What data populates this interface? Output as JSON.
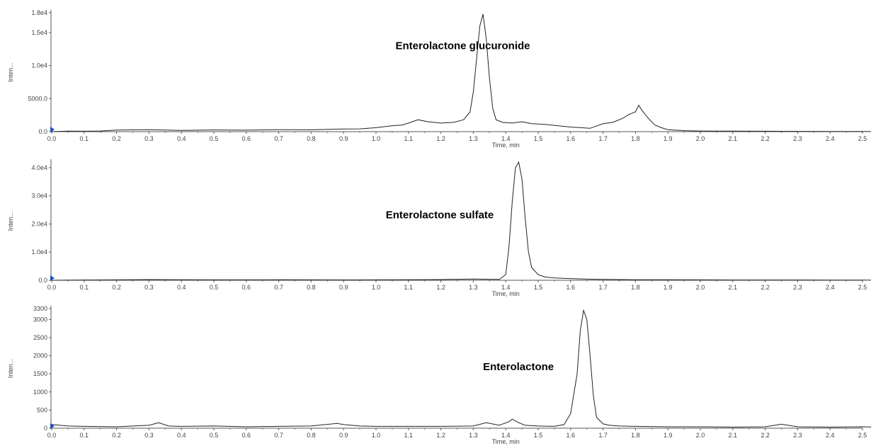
{
  "chart_data": [
    {
      "type": "line",
      "title": "",
      "xlabel": "Time, min",
      "ylabel": "Inten...",
      "xlim": [
        0,
        2.56
      ],
      "ylim": [
        0,
        18000
      ],
      "x_ticks": [
        "0.0",
        "0.1",
        "0.2",
        "0.3",
        "0.4",
        "0.5",
        "0.6",
        "0.7",
        "0.8",
        "0.9",
        "1.0",
        "1.1",
        "1.2",
        "1.3",
        "1.4",
        "1.5",
        "1.6",
        "1.7",
        "1.8",
        "1.9",
        "2.0",
        "2.1",
        "2.2",
        "2.3",
        "2.4",
        "2.5"
      ],
      "y_ticks": [
        {
          "value": 0,
          "label": "0.0"
        },
        {
          "value": 5000,
          "label": "5000.0"
        },
        {
          "value": 10000,
          "label": "1.0e4"
        },
        {
          "value": 15000,
          "label": "1.5e4"
        },
        {
          "value": 18000,
          "label": "1.8e4"
        }
      ],
      "annotation": {
        "text": "Enterolactone glucuronide",
        "x": 1.06,
        "y": 12500
      },
      "series": [
        {
          "name": "",
          "x": [
            0.0,
            0.05,
            0.1,
            0.15,
            0.2,
            0.3,
            0.4,
            0.5,
            0.6,
            0.7,
            0.8,
            0.9,
            0.95,
            1.0,
            1.05,
            1.08,
            1.1,
            1.13,
            1.16,
            1.2,
            1.24,
            1.27,
            1.29,
            1.3,
            1.31,
            1.32,
            1.33,
            1.34,
            1.35,
            1.36,
            1.37,
            1.39,
            1.42,
            1.45,
            1.48,
            1.52,
            1.56,
            1.6,
            1.63,
            1.66,
            1.7,
            1.73,
            1.76,
            1.78,
            1.8,
            1.81,
            1.82,
            1.84,
            1.86,
            1.88,
            1.9,
            1.95,
            2.0,
            2.1,
            2.2,
            2.3,
            2.4,
            2.5,
            2.56
          ],
          "y": [
            0,
            80,
            60,
            100,
            250,
            300,
            180,
            260,
            220,
            300,
            280,
            400,
            420,
            600,
            900,
            1000,
            1300,
            1800,
            1500,
            1300,
            1400,
            1800,
            3000,
            6000,
            11000,
            16000,
            17800,
            14000,
            8000,
            3500,
            1800,
            1400,
            1300,
            1500,
            1200,
            1100,
            900,
            700,
            600,
            500,
            1200,
            1400,
            2000,
            2600,
            3000,
            4000,
            3200,
            2000,
            1000,
            600,
            300,
            150,
            100,
            80,
            60,
            40,
            30,
            20,
            0
          ]
        }
      ]
    },
    {
      "type": "line",
      "title": "",
      "xlabel": "Time, min",
      "ylabel": "Inten...",
      "xlim": [
        0,
        2.56
      ],
      "ylim": [
        0,
        42000
      ],
      "x_ticks": [
        "0.0",
        "0.1",
        "0.2",
        "0.3",
        "0.4",
        "0.5",
        "0.6",
        "0.7",
        "0.8",
        "0.9",
        "1.0",
        "1.1",
        "1.2",
        "1.3",
        "1.4",
        "1.5",
        "1.6",
        "1.7",
        "1.8",
        "1.9",
        "2.0",
        "2.1",
        "2.2",
        "2.3",
        "2.4",
        "2.5"
      ],
      "y_ticks": [
        {
          "value": 0,
          "label": "0.0"
        },
        {
          "value": 10000,
          "label": "1.0e4"
        },
        {
          "value": 20000,
          "label": "2.0e4"
        },
        {
          "value": 30000,
          "label": "3.0e4"
        },
        {
          "value": 40000,
          "label": "4.0e4"
        }
      ],
      "annotation": {
        "text": "Enterolactone sulfate",
        "x": 1.03,
        "y": 22000
      },
      "series": [
        {
          "name": "",
          "x": [
            0.0,
            0.1,
            0.2,
            0.3,
            0.4,
            0.5,
            0.6,
            0.7,
            0.8,
            0.9,
            1.0,
            1.1,
            1.2,
            1.25,
            1.3,
            1.35,
            1.38,
            1.4,
            1.41,
            1.42,
            1.43,
            1.44,
            1.45,
            1.46,
            1.47,
            1.48,
            1.5,
            1.52,
            1.55,
            1.6,
            1.65,
            1.7,
            1.8,
            1.9,
            2.0,
            2.1,
            2.2,
            2.3,
            2.4,
            2.5,
            2.56
          ],
          "y": [
            0,
            100,
            150,
            250,
            200,
            150,
            150,
            180,
            150,
            120,
            150,
            200,
            250,
            350,
            450,
            350,
            300,
            2000,
            12000,
            28000,
            40000,
            42000,
            36000,
            22000,
            10000,
            4500,
            2000,
            1200,
            800,
            600,
            400,
            300,
            200,
            200,
            150,
            100,
            100,
            100,
            80,
            60,
            0
          ]
        }
      ]
    },
    {
      "type": "line",
      "title": "",
      "xlabel": "Time, min",
      "ylabel": "Inten...",
      "xlim": [
        0,
        2.56
      ],
      "ylim": [
        0,
        3300
      ],
      "x_ticks": [
        "0.0",
        "0.1",
        "0.2",
        "0.3",
        "0.4",
        "0.5",
        "0.6",
        "0.7",
        "0.8",
        "0.9",
        "1.0",
        "1.1",
        "1.2",
        "1.3",
        "1.4",
        "1.5",
        "1.6",
        "1.7",
        "1.8",
        "1.9",
        "2.0",
        "2.1",
        "2.2",
        "2.3",
        "2.4",
        "2.5"
      ],
      "y_ticks": [
        {
          "value": 0,
          "label": "0"
        },
        {
          "value": 500,
          "label": "500"
        },
        {
          "value": 1000,
          "label": "1000"
        },
        {
          "value": 1500,
          "label": "1500"
        },
        {
          "value": 2000,
          "label": "2000"
        },
        {
          "value": 2500,
          "label": "2500"
        },
        {
          "value": 3000,
          "label": "3000"
        },
        {
          "value": 3300,
          "label": "3300"
        }
      ],
      "annotation": {
        "text": "Enterolactone",
        "x": 1.33,
        "y": 1600
      },
      "series": [
        {
          "name": "",
          "x": [
            0.0,
            0.05,
            0.1,
            0.2,
            0.3,
            0.33,
            0.36,
            0.4,
            0.5,
            0.6,
            0.7,
            0.8,
            0.88,
            0.9,
            0.95,
            1.0,
            1.1,
            1.2,
            1.3,
            1.34,
            1.38,
            1.41,
            1.42,
            1.44,
            1.46,
            1.5,
            1.55,
            1.58,
            1.6,
            1.62,
            1.63,
            1.64,
            1.65,
            1.66,
            1.67,
            1.68,
            1.7,
            1.72,
            1.75,
            1.8,
            1.9,
            2.0,
            2.1,
            2.2,
            2.25,
            2.3,
            2.4,
            2.5,
            2.56
          ],
          "y": [
            100,
            60,
            50,
            40,
            80,
            150,
            60,
            50,
            60,
            40,
            50,
            60,
            130,
            100,
            60,
            50,
            50,
            50,
            60,
            150,
            80,
            180,
            250,
            150,
            80,
            60,
            50,
            100,
            400,
            1500,
            2700,
            3250,
            3000,
            2000,
            900,
            300,
            120,
            80,
            60,
            50,
            40,
            40,
            30,
            40,
            110,
            40,
            30,
            40,
            20
          ]
        }
      ]
    }
  ]
}
